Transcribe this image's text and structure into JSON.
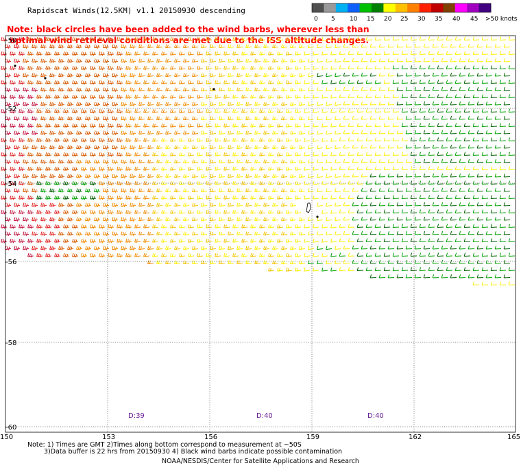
{
  "title": "Rapidscat Winds(12.5KM) v1.1 20150930 descending",
  "note_line1": "Note: black circles have been added to the wind barbs, wherever less than",
  "note_line2": "optimal wind retrieval conditions are met due to the ISS altitude changes.",
  "footnote_line1": "Note: 1) Times are GMT 2)Times along bottom correspond to measurement at ~50S",
  "footnote_line2": "3)Data buffer is 22 hrs from 20150930 4) Black wind barbs indicate possible contamination",
  "credit": "NOAA/NESDIS/Center for Satellite Applications and Research",
  "legend": {
    "labels": [
      "0",
      "5",
      "10",
      "15",
      "20",
      "25",
      "30",
      "35",
      "40",
      "45",
      ">50 knots"
    ],
    "colors": [
      "#505050",
      "#9a9a9a",
      "#00b0f0",
      "#1060ff",
      "#00c000",
      "#008000",
      "#ffff00",
      "#ffc000",
      "#ff8000",
      "#ff2000",
      "#c00000",
      "#804000",
      "#ff00ff",
      "#a000c0",
      "#400080"
    ]
  },
  "lat_labels": [
    "-50",
    "-52",
    "-54",
    "-56",
    "-58",
    "-60"
  ],
  "lon_labels": [
    "150",
    "153",
    "156",
    "159",
    "162",
    "165"
  ],
  "pass_times": [
    "D:39",
    "D:40",
    "D:40"
  ],
  "wind_field": {
    "speed_color_scale": {
      "green": "#00a000",
      "dark_green": "#006000",
      "yellow": "#ffee00",
      "gold": "#f5c400",
      "orange": "#f08a00",
      "dark_orange": "#d85a00",
      "red": "#e02020",
      "crimson": "#c0103c"
    }
  }
}
